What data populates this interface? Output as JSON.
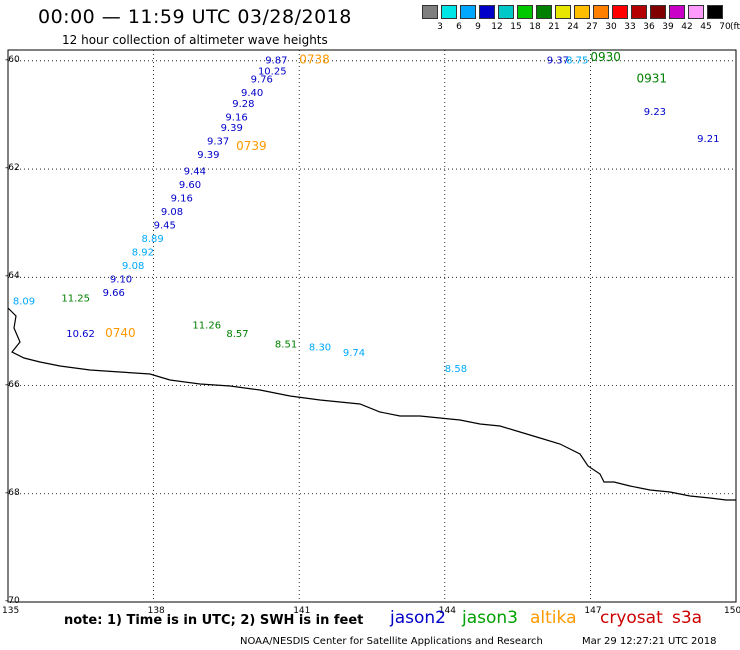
{
  "header": {
    "title": "00:00 — 11:59 UTC 03/28/2018",
    "subtitle": "12 hour collection of altimeter wave heights"
  },
  "legend_scale": {
    "unit": "(ft)",
    "colors": [
      "#7f7f7f",
      "#00e5e5",
      "#00a8ff",
      "#0000c8",
      "#00c8c8",
      "#00c800",
      "#008000",
      "#e6e600",
      "#ffbf00",
      "#ff8000",
      "#ff0000",
      "#b40000",
      "#800000",
      "#c800c8",
      "#ff9bff",
      "#000000"
    ],
    "labels": [
      "3",
      "6",
      "9",
      "12",
      "15",
      "18",
      "21",
      "24",
      "27",
      "30",
      "33",
      "36",
      "39",
      "42",
      "45",
      "70"
    ]
  },
  "axes": {
    "lat_labels": [
      "-60",
      "-62",
      "-64",
      "-66",
      "-68",
      "-70"
    ],
    "lon_labels": [
      "135",
      "138",
      "141",
      "144",
      "147",
      "150"
    ]
  },
  "footer": {
    "note": "note: 1) Time is in UTC; 2) SWH is in feet",
    "satellites": [
      {
        "name": "jason2",
        "color": "#0000c8"
      },
      {
        "name": "jason3",
        "color": "#00a000"
      },
      {
        "name": "altika",
        "color": "#ff9900"
      },
      {
        "name": "cryosat",
        "color": "#cc0000"
      },
      {
        "name": "s3a",
        "color": "#cc0000"
      }
    ],
    "credit": "NOAA/NESDIS Center for Satellite Applications and Research",
    "stamp": "Mar 29 12:27:21 UTC 2018"
  },
  "tracks": [
    {
      "name": "jason2-track-ascending",
      "color": "#0000c8",
      "labels": [
        {
          "text": "9.87",
          "lat": -60.05,
          "lon": 140.3
        },
        {
          "text": "10.25",
          "lat": -60.25,
          "lon": 140.15
        },
        {
          "text": "9.76",
          "lat": -60.4,
          "lon": 140.0
        },
        {
          "text": "9.40",
          "lat": -60.65,
          "lon": 139.8
        },
        {
          "text": "9.28",
          "lat": -60.85,
          "lon": 139.62
        },
        {
          "text": "9.16",
          "lat": -61.1,
          "lon": 139.48
        },
        {
          "text": "9.39",
          "lat": -61.3,
          "lon": 139.38
        },
        {
          "text": "9.37",
          "lat": -61.55,
          "lon": 139.1
        },
        {
          "text": "9.39",
          "lat": -61.8,
          "lon": 138.9
        },
        {
          "text": "9.44",
          "lat": -62.1,
          "lon": 138.62
        },
        {
          "text": "9.60",
          "lat": -62.35,
          "lon": 138.52
        },
        {
          "text": "9.16",
          "lat": -62.6,
          "lon": 138.35
        },
        {
          "text": "9.08",
          "lat": -62.85,
          "lon": 138.15
        },
        {
          "text": "9.45",
          "lat": -63.1,
          "lon": 138.0
        },
        {
          "text": "9.10",
          "lat": -64.1,
          "lon": 137.1
        },
        {
          "text": "9.66",
          "lat": -64.35,
          "lon": 136.95
        },
        {
          "text": "10.62",
          "lat": -65.1,
          "lon": 136.2
        },
        {
          "text": "9.21",
          "lat": -61.5,
          "lon": 149.2
        },
        {
          "text": "9.23",
          "lat": -61.0,
          "lon": 148.1
        },
        {
          "text": "9.37",
          "lat": -60.05,
          "lon": 146.1
        }
      ]
    },
    {
      "name": "jason2-light-labels",
      "color": "#00a8ff",
      "labels": [
        {
          "text": "8.89",
          "lat": -63.35,
          "lon": 137.75
        },
        {
          "text": "8.92",
          "lat": -63.6,
          "lon": 137.55
        },
        {
          "text": "9.08",
          "lat": -63.85,
          "lon": 137.35
        },
        {
          "text": "8.58",
          "lat": -65.75,
          "lon": 144.0
        },
        {
          "text": "9.74",
          "lat": -65.45,
          "lon": 141.9
        },
        {
          "text": "8.30",
          "lat": -65.35,
          "lon": 141.2
        },
        {
          "text": "8.09",
          "lat": -64.5,
          "lon": 135.1
        },
        {
          "text": "8.75",
          "lat": -60.05,
          "lon": 146.5
        }
      ]
    },
    {
      "name": "jason3-track",
      "color": "#008000",
      "labels": [
        {
          "text": "0930",
          "lat": -60.0,
          "lon": 147.0
        },
        {
          "text": "0931",
          "lat": -60.4,
          "lon": 147.95
        },
        {
          "text": "11.25",
          "lat": -64.45,
          "lon": 136.1
        },
        {
          "text": "11.26",
          "lat": -64.95,
          "lon": 138.8
        },
        {
          "text": "8.57",
          "lat": -65.1,
          "lon": 139.5
        },
        {
          "text": "8.51",
          "lat": -65.3,
          "lon": 140.5
        }
      ]
    },
    {
      "name": "altika-times",
      "color": "#ff9900",
      "labels": [
        {
          "text": "0738",
          "lat": -60.05,
          "lon": 141.0
        },
        {
          "text": "0739",
          "lat": -61.65,
          "lon": 139.7
        },
        {
          "text": "0740",
          "lat": -65.1,
          "lon": 137.0
        }
      ]
    }
  ]
}
